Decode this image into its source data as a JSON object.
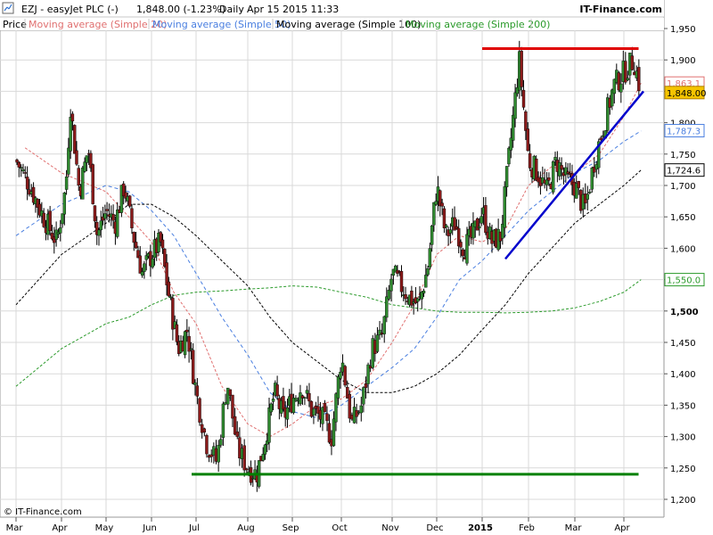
{
  "header": {
    "symbol": "EZJ - easyJet PLC (-)",
    "quote": "1,848.00 (-1.23%)",
    "period": "Daily",
    "datetime": "Apr 15 2015 11:33",
    "brand": "IT-Finance.com"
  },
  "legend": [
    {
      "label": "Price",
      "color": "#000000"
    },
    {
      "label": "Moving average (Simple 20)",
      "color": "#e07070"
    },
    {
      "label": "Moving average (Simple 50)",
      "color": "#4a7fe0"
    },
    {
      "label": "Moving average (Simple 100)",
      "color": "#000000"
    },
    {
      "label": "Moving average (Simple 200)",
      "color": "#2a9a2a"
    }
  ],
  "footer": {
    "copyright": "© IT-Finance.com"
  },
  "colors": {
    "candle_up": "#2f8a2f",
    "candle_down": "#8a1a1a",
    "wick": "#000000",
    "resistance": "#e00000",
    "support": "#008000",
    "trendline": "#0000cc",
    "grid": "#d9d9d9",
    "price_badge": "#f5c400"
  },
  "chart_data": {
    "type": "candlestick",
    "title": "EZJ - easyJet PLC (-)",
    "x_ticks": [
      {
        "label": "Mar",
        "bold": false
      },
      {
        "label": "Apr",
        "bold": false
      },
      {
        "label": "May",
        "bold": false
      },
      {
        "label": "Jun",
        "bold": false
      },
      {
        "label": "Jul",
        "bold": false
      },
      {
        "label": "Aug",
        "bold": false
      },
      {
        "label": "Sep",
        "bold": false
      },
      {
        "label": "Oct",
        "bold": false
      },
      {
        "label": "Nov",
        "bold": false
      },
      {
        "label": "Dec",
        "bold": false
      },
      {
        "label": "2015",
        "bold": true
      },
      {
        "label": "Feb",
        "bold": false
      },
      {
        "label": "Mar",
        "bold": false
      },
      {
        "label": "Apr",
        "bold": false
      }
    ],
    "y_ticks": [
      {
        "value": 1200,
        "label": "1,200",
        "bold": false
      },
      {
        "value": 1250,
        "label": "1,250",
        "bold": false
      },
      {
        "value": 1300,
        "label": "1,300",
        "bold": false
      },
      {
        "value": 1350,
        "label": "1,350",
        "bold": false
      },
      {
        "value": 1400,
        "label": "1,400",
        "bold": false
      },
      {
        "value": 1450,
        "label": "1,450",
        "bold": false
      },
      {
        "value": 1500,
        "label": "1,500",
        "bold": true
      },
      {
        "value": 1550,
        "label": "1,550",
        "bold": false
      },
      {
        "value": 1600,
        "label": "1,600",
        "bold": false
      },
      {
        "value": 1650,
        "label": "1,650",
        "bold": false
      },
      {
        "value": 1700,
        "label": "1,700",
        "bold": false
      },
      {
        "value": 1750,
        "label": "1,750",
        "bold": false
      },
      {
        "value": 1800,
        "label": "1,800",
        "bold": false
      },
      {
        "value": 1850,
        "label": "1,850",
        "bold": false
      },
      {
        "value": 1900,
        "label": "1,900",
        "bold": false
      },
      {
        "value": 1950,
        "label": "1,950",
        "bold": false
      }
    ],
    "ylim": [
      1188,
      1975
    ],
    "value_labels": [
      {
        "label": "1,863.1",
        "value": 1863.1,
        "color": "#e07070",
        "fill": "#ffffff",
        "text_color": "#e07070"
      },
      {
        "label": "1,848.00",
        "value": 1848.0,
        "color": "#b08000",
        "fill": "#f5c400",
        "text_color": "#000000"
      },
      {
        "label": "1,787.3",
        "value": 1787.3,
        "color": "#4a7fe0",
        "fill": "#ffffff",
        "text_color": "#4a7fe0"
      },
      {
        "label": "1,724.6",
        "value": 1724.6,
        "color": "#000000",
        "fill": "#ffffff",
        "text_color": "#000000"
      },
      {
        "label": "1,550.0",
        "value": 1550.0,
        "color": "#2a9a2a",
        "fill": "#ffffff",
        "text_color": "#2a9a2a"
      }
    ],
    "price_path": [
      {
        "month": 0.0,
        "price": 1740
      },
      {
        "month": 0.3,
        "price": 1700
      },
      {
        "month": 0.6,
        "price": 1650
      },
      {
        "month": 0.9,
        "price": 1610
      },
      {
        "month": 1.1,
        "price": 1700
      },
      {
        "month": 1.2,
        "price": 1830
      },
      {
        "month": 1.4,
        "price": 1690
      },
      {
        "month": 1.6,
        "price": 1760
      },
      {
        "month": 1.8,
        "price": 1620
      },
      {
        "month": 2.0,
        "price": 1660
      },
      {
        "month": 2.2,
        "price": 1640
      },
      {
        "month": 2.4,
        "price": 1700
      },
      {
        "month": 2.6,
        "price": 1620
      },
      {
        "month": 2.8,
        "price": 1560
      },
      {
        "month": 3.0,
        "price": 1590
      },
      {
        "month": 3.2,
        "price": 1610
      },
      {
        "month": 3.4,
        "price": 1520
      },
      {
        "month": 3.6,
        "price": 1440
      },
      {
        "month": 3.8,
        "price": 1470
      },
      {
        "month": 4.0,
        "price": 1370
      },
      {
        "month": 4.2,
        "price": 1290
      },
      {
        "month": 4.4,
        "price": 1260
      },
      {
        "month": 4.6,
        "price": 1390
      },
      {
        "month": 4.8,
        "price": 1280
      },
      {
        "month": 5.0,
        "price": 1250
      },
      {
        "month": 5.2,
        "price": 1240
      },
      {
        "month": 5.4,
        "price": 1300
      },
      {
        "month": 5.6,
        "price": 1370
      },
      {
        "month": 5.8,
        "price": 1330
      },
      {
        "month": 6.0,
        "price": 1360
      },
      {
        "month": 6.2,
        "price": 1380
      },
      {
        "month": 6.4,
        "price": 1340
      },
      {
        "month": 6.6,
        "price": 1330
      },
      {
        "month": 6.8,
        "price": 1300
      },
      {
        "month": 7.0,
        "price": 1430
      },
      {
        "month": 7.2,
        "price": 1320
      },
      {
        "month": 7.4,
        "price": 1350
      },
      {
        "month": 7.6,
        "price": 1440
      },
      {
        "month": 7.8,
        "price": 1460
      },
      {
        "month": 8.0,
        "price": 1560
      },
      {
        "month": 8.2,
        "price": 1540
      },
      {
        "month": 8.4,
        "price": 1520
      },
      {
        "month": 8.6,
        "price": 1510
      },
      {
        "month": 8.8,
        "price": 1570
      },
      {
        "month": 9.0,
        "price": 1700
      },
      {
        "month": 9.2,
        "price": 1620
      },
      {
        "month": 9.4,
        "price": 1640
      },
      {
        "month": 9.6,
        "price": 1600
      },
      {
        "month": 9.8,
        "price": 1620
      },
      {
        "month": 10.0,
        "price": 1660
      },
      {
        "month": 10.2,
        "price": 1610
      },
      {
        "month": 10.4,
        "price": 1620
      },
      {
        "month": 10.6,
        "price": 1760
      },
      {
        "month": 10.8,
        "price": 1900
      },
      {
        "month": 11.0,
        "price": 1740
      },
      {
        "month": 11.2,
        "price": 1720
      },
      {
        "month": 11.4,
        "price": 1690
      },
      {
        "month": 11.6,
        "price": 1740
      },
      {
        "month": 11.8,
        "price": 1710
      },
      {
        "month": 12.0,
        "price": 1700
      },
      {
        "month": 12.2,
        "price": 1660
      },
      {
        "month": 12.4,
        "price": 1740
      },
      {
        "month": 12.6,
        "price": 1800
      },
      {
        "month": 12.8,
        "price": 1860
      },
      {
        "month": 13.0,
        "price": 1880
      },
      {
        "month": 13.2,
        "price": 1900
      },
      {
        "month": 13.35,
        "price": 1848
      }
    ],
    "ma_series": [
      {
        "name": "Moving average (Simple 20)",
        "color": "#e07070",
        "dash": "3,2",
        "points": [
          {
            "month": 0.2,
            "value": 1760
          },
          {
            "month": 1.0,
            "value": 1720
          },
          {
            "month": 2.0,
            "value": 1690
          },
          {
            "month": 2.5,
            "value": 1650
          },
          {
            "month": 3.0,
            "value": 1610
          },
          {
            "month": 3.5,
            "value": 1530
          },
          {
            "month": 4.0,
            "value": 1480
          },
          {
            "month": 4.5,
            "value": 1380
          },
          {
            "month": 5.0,
            "value": 1320
          },
          {
            "month": 5.5,
            "value": 1300
          },
          {
            "month": 6.0,
            "value": 1320
          },
          {
            "month": 6.5,
            "value": 1350
          },
          {
            "month": 7.0,
            "value": 1360
          },
          {
            "month": 7.5,
            "value": 1390
          },
          {
            "month": 8.0,
            "value": 1450
          },
          {
            "month": 8.5,
            "value": 1510
          },
          {
            "month": 9.0,
            "value": 1590
          },
          {
            "month": 9.5,
            "value": 1620
          },
          {
            "month": 10.0,
            "value": 1610
          },
          {
            "month": 10.5,
            "value": 1630
          },
          {
            "month": 11.0,
            "value": 1700
          },
          {
            "month": 11.5,
            "value": 1730
          },
          {
            "month": 12.0,
            "value": 1720
          },
          {
            "month": 12.5,
            "value": 1750
          },
          {
            "month": 13.0,
            "value": 1810
          },
          {
            "month": 13.35,
            "value": 1863
          }
        ]
      },
      {
        "name": "Moving average (Simple 50)",
        "color": "#4a7fe0",
        "dash": "4,3",
        "points": [
          {
            "month": 0.0,
            "value": 1620
          },
          {
            "month": 1.0,
            "value": 1670
          },
          {
            "month": 2.0,
            "value": 1700
          },
          {
            "month": 2.5,
            "value": 1690
          },
          {
            "month": 3.0,
            "value": 1660
          },
          {
            "month": 3.5,
            "value": 1620
          },
          {
            "month": 4.0,
            "value": 1560
          },
          {
            "month": 4.5,
            "value": 1490
          },
          {
            "month": 5.0,
            "value": 1430
          },
          {
            "month": 5.5,
            "value": 1370
          },
          {
            "month": 6.0,
            "value": 1340
          },
          {
            "month": 6.5,
            "value": 1330
          },
          {
            "month": 7.0,
            "value": 1350
          },
          {
            "month": 7.5,
            "value": 1380
          },
          {
            "month": 8.0,
            "value": 1410
          },
          {
            "month": 8.5,
            "value": 1440
          },
          {
            "month": 9.0,
            "value": 1490
          },
          {
            "month": 9.5,
            "value": 1550
          },
          {
            "month": 10.0,
            "value": 1580
          },
          {
            "month": 10.5,
            "value": 1620
          },
          {
            "month": 11.0,
            "value": 1660
          },
          {
            "month": 11.5,
            "value": 1690
          },
          {
            "month": 12.0,
            "value": 1720
          },
          {
            "month": 12.5,
            "value": 1740
          },
          {
            "month": 13.0,
            "value": 1770
          },
          {
            "month": 13.35,
            "value": 1787
          }
        ]
      },
      {
        "name": "Moving average (Simple 100)",
        "color": "#000000",
        "dash": "3,2",
        "points": [
          {
            "month": 0.0,
            "value": 1510
          },
          {
            "month": 1.0,
            "value": 1590
          },
          {
            "month": 2.0,
            "value": 1640
          },
          {
            "month": 2.5,
            "value": 1670
          },
          {
            "month": 3.0,
            "value": 1670
          },
          {
            "month": 3.5,
            "value": 1650
          },
          {
            "month": 4.0,
            "value": 1620
          },
          {
            "month": 4.5,
            "value": 1580
          },
          {
            "month": 5.0,
            "value": 1540
          },
          {
            "month": 5.5,
            "value": 1490
          },
          {
            "month": 6.0,
            "value": 1450
          },
          {
            "month": 6.5,
            "value": 1420
          },
          {
            "month": 7.0,
            "value": 1390
          },
          {
            "month": 7.5,
            "value": 1370
          },
          {
            "month": 8.0,
            "value": 1370
          },
          {
            "month": 8.5,
            "value": 1380
          },
          {
            "month": 9.0,
            "value": 1400
          },
          {
            "month": 9.5,
            "value": 1430
          },
          {
            "month": 10.0,
            "value": 1470
          },
          {
            "month": 10.5,
            "value": 1510
          },
          {
            "month": 11.0,
            "value": 1560
          },
          {
            "month": 11.5,
            "value": 1600
          },
          {
            "month": 12.0,
            "value": 1640
          },
          {
            "month": 12.5,
            "value": 1670
          },
          {
            "month": 13.0,
            "value": 1700
          },
          {
            "month": 13.35,
            "value": 1724.6
          }
        ]
      },
      {
        "name": "Moving average (Simple 200)",
        "color": "#2a9a2a",
        "dash": "3,2",
        "points": [
          {
            "month": 0.0,
            "value": 1380
          },
          {
            "month": 0.5,
            "value": 1410
          },
          {
            "month": 1.0,
            "value": 1440
          },
          {
            "month": 1.5,
            "value": 1460
          },
          {
            "month": 2.0,
            "value": 1480
          },
          {
            "month": 2.5,
            "value": 1490
          },
          {
            "month": 3.0,
            "value": 1510
          },
          {
            "month": 3.5,
            "value": 1525
          },
          {
            "month": 4.0,
            "value": 1530
          },
          {
            "month": 4.5,
            "value": 1532
          },
          {
            "month": 5.0,
            "value": 1535
          },
          {
            "month": 5.5,
            "value": 1537
          },
          {
            "month": 6.0,
            "value": 1540
          },
          {
            "month": 6.5,
            "value": 1538
          },
          {
            "month": 7.0,
            "value": 1530
          },
          {
            "month": 7.5,
            "value": 1522
          },
          {
            "month": 8.0,
            "value": 1510
          },
          {
            "month": 8.5,
            "value": 1505
          },
          {
            "month": 9.0,
            "value": 1500
          },
          {
            "month": 9.5,
            "value": 1498
          },
          {
            "month": 10.0,
            "value": 1498
          },
          {
            "month": 10.5,
            "value": 1497
          },
          {
            "month": 11.0,
            "value": 1498
          },
          {
            "month": 11.5,
            "value": 1500
          },
          {
            "month": 12.0,
            "value": 1505
          },
          {
            "month": 12.5,
            "value": 1515
          },
          {
            "month": 13.0,
            "value": 1530
          },
          {
            "month": 13.35,
            "value": 1550
          }
        ]
      }
    ],
    "annotations": [
      {
        "kind": "resistance",
        "from_month": 10.0,
        "to_month": 13.3,
        "value": 1918
      },
      {
        "kind": "support",
        "from_month": 3.9,
        "to_month": 13.3,
        "value": 1240
      },
      {
        "kind": "trendline",
        "from_month": 10.5,
        "from_value": 1583,
        "to_month": 13.4,
        "to_value": 1850
      }
    ]
  }
}
